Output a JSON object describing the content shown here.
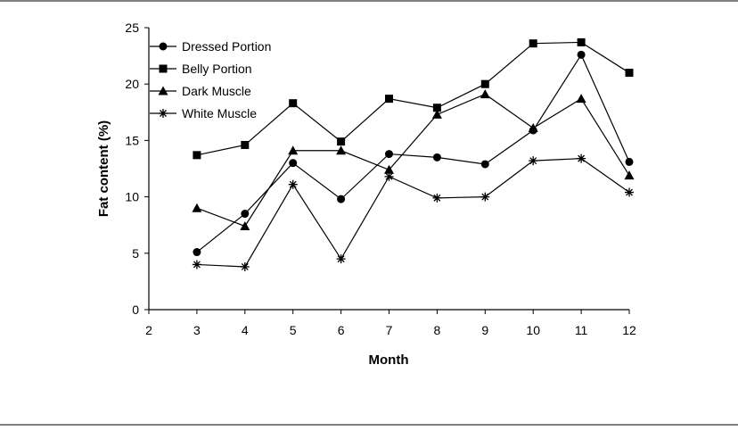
{
  "chart_data": {
    "type": "line",
    "title": "",
    "xlabel": "Month",
    "ylabel": "Fat content (%)",
    "xlim": [
      2,
      12
    ],
    "ylim": [
      0,
      25
    ],
    "x_ticks": [
      "2",
      "3",
      "4",
      "5",
      "6",
      "7",
      "8",
      "9",
      "10",
      "11",
      "12"
    ],
    "y_ticks": [
      "0",
      "5",
      "10",
      "15",
      "20",
      "25"
    ],
    "grid": false,
    "legend_position": "top-left",
    "x": [
      3,
      4,
      5,
      6,
      7,
      8,
      9,
      10,
      11,
      12
    ],
    "series": [
      {
        "name": "Dressed Portion",
        "marker": "circle",
        "values": [
          5.1,
          8.5,
          13.0,
          9.8,
          13.8,
          13.5,
          12.9,
          15.9,
          22.6,
          13.1
        ]
      },
      {
        "name": "Belly Portion",
        "marker": "square",
        "values": [
          13.7,
          14.6,
          18.3,
          14.9,
          18.7,
          17.9,
          20.0,
          23.6,
          23.7,
          21.0
        ]
      },
      {
        "name": "Dark Muscle",
        "marker": "triangle",
        "values": [
          9.0,
          7.4,
          14.1,
          14.1,
          12.4,
          17.3,
          19.1,
          16.1,
          18.7,
          11.9
        ]
      },
      {
        "name": "White Muscle",
        "marker": "star",
        "values": [
          4.0,
          3.8,
          11.1,
          4.5,
          11.8,
          9.9,
          10.0,
          13.2,
          13.4,
          10.4
        ]
      }
    ]
  }
}
